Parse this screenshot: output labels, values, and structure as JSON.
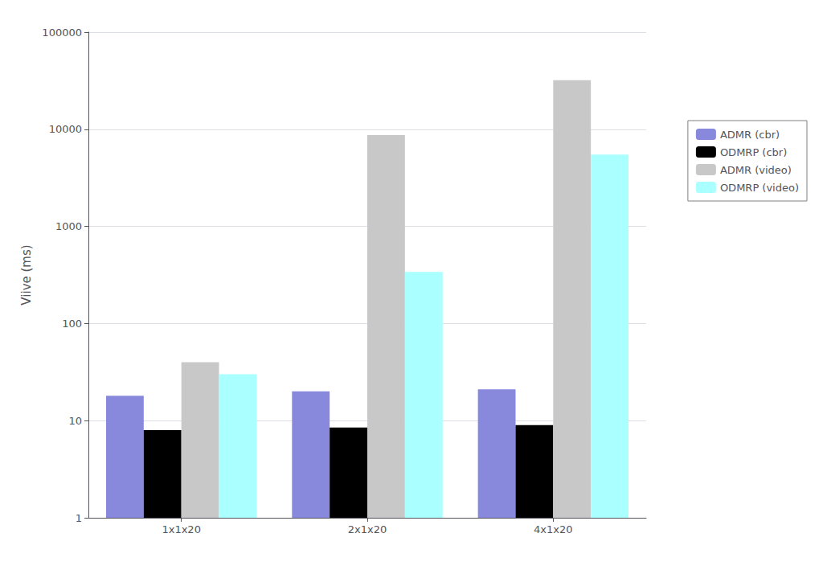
{
  "chart_data": {
    "type": "bar",
    "categories": [
      "1x1x20",
      "2x1x20",
      "4x1x20"
    ],
    "series": [
      {
        "name": "ADMR (cbr)",
        "color": "#8888dd",
        "values": [
          18,
          20,
          21
        ]
      },
      {
        "name": "ODMRP (cbr)",
        "color": "#000000",
        "values": [
          8,
          8.5,
          9
        ]
      },
      {
        "name": "ADMR (video)",
        "color": "#c8c8c8",
        "values": [
          40,
          8700,
          32000
        ]
      },
      {
        "name": "ODMRP (video)",
        "color": "#aaffff",
        "values": [
          30,
          340,
          5500
        ]
      }
    ],
    "ylabel": "Viive (ms)",
    "ylim": [
      1,
      100000
    ],
    "yticks": [
      1,
      10,
      100,
      1000,
      10000,
      100000
    ],
    "log": "y",
    "grid": true,
    "legend": "right"
  }
}
